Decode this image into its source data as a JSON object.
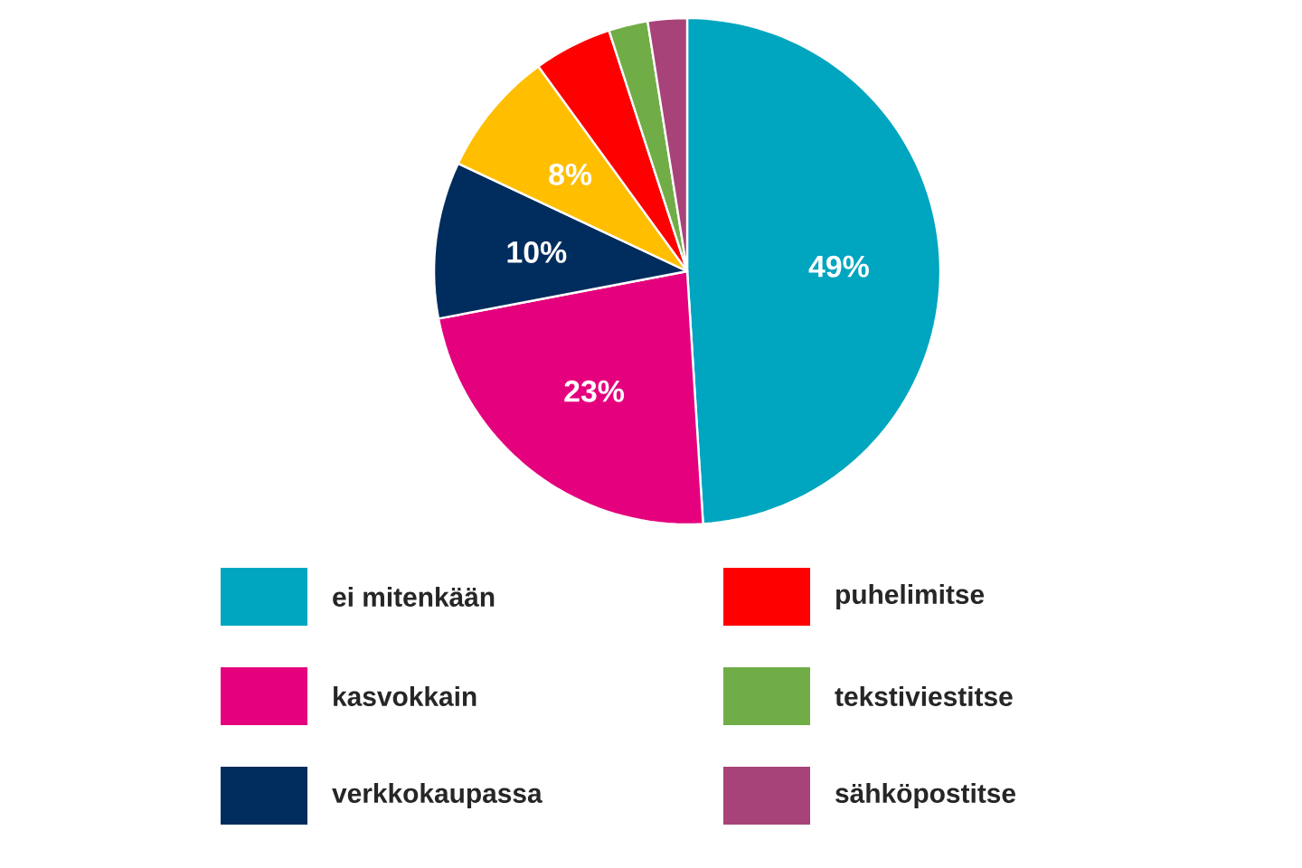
{
  "chart_data": {
    "type": "pie",
    "categories": [
      "ei mitenkään",
      "kasvokkain",
      "verkkokaupassa",
      null,
      "puhelimitse",
      "tekstiviestitse",
      "sähköpostitse"
    ],
    "values": [
      49,
      23,
      10,
      8,
      5,
      2.5,
      2.5
    ],
    "colors": [
      "#00a5c0",
      "#e5007d",
      "#002d5e",
      "#ffbe00",
      "#ff0000",
      "#70ad47",
      "#a84379"
    ],
    "value_labels": [
      "49%",
      "23%",
      "10%",
      "8%",
      null,
      null,
      null
    ],
    "legend": "bottom"
  }
}
